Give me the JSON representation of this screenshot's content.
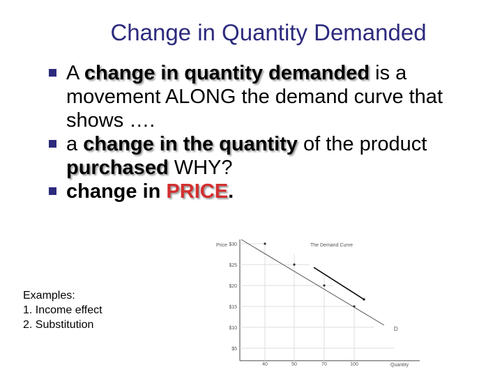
{
  "title": "Change in Quantity Demanded",
  "bullets": {
    "b1": {
      "p1": "A ",
      "p2": "change in quantity demanded",
      "p3": " is a movement ALONG the demand curve that shows …."
    },
    "b2": {
      "p1": "a ",
      "p2": "change in the quantity",
      "p3": " of the product ",
      "p4": "purchased",
      "p5": " WHY?"
    },
    "b3": {
      "p1": "change in ",
      "p2": "PRICE",
      "p3": "."
    }
  },
  "examples": {
    "heading": "Examples:",
    "item1": "1.  Income effect",
    "item2": "2.  Substitution"
  },
  "colors": {
    "title": "#2d2a7e",
    "bullet": "#2d2a7e",
    "price_highlight": "#d32f2f"
  },
  "chart_data": {
    "type": "line",
    "title": "The Demand Curve",
    "xlabel": "Quantity",
    "ylabel": "Price",
    "x_ticks": [
      "40",
      "50",
      "70",
      "100"
    ],
    "y_ticks": [
      "$30",
      "$25",
      "$20",
      "$15",
      "$10",
      "$5"
    ],
    "series": [
      {
        "name": "D",
        "points": [
          [
            40,
            30
          ],
          [
            50,
            25
          ],
          [
            70,
            20
          ],
          [
            100,
            15
          ]
        ]
      }
    ],
    "grid": true,
    "annotation": "arrow showing movement along the curve from $25 toward $15"
  }
}
